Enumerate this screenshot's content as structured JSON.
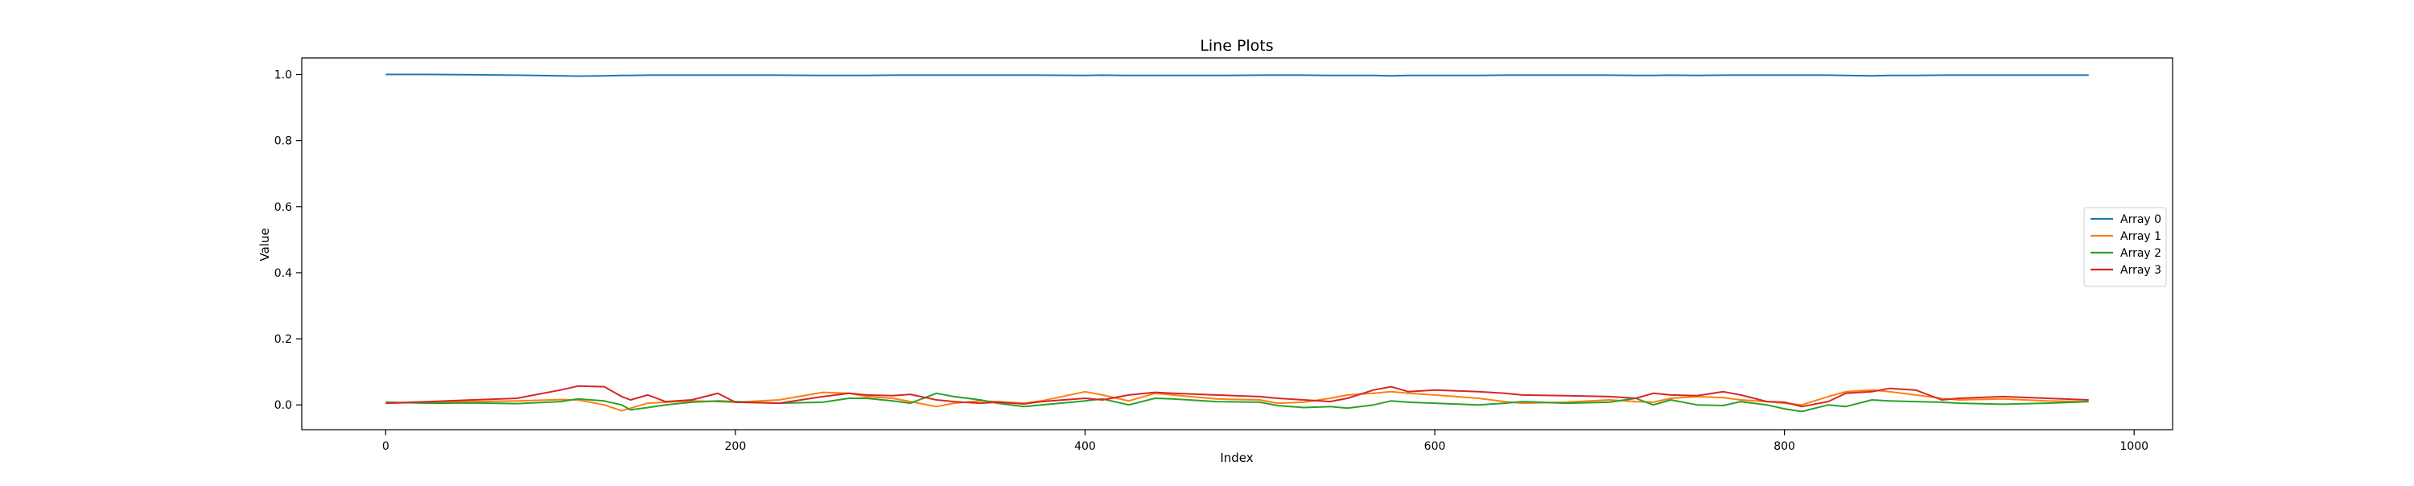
{
  "chart_data": {
    "type": "line",
    "title": "Line Plots",
    "xlabel": "Index",
    "ylabel": "Value",
    "xlim": [
      -48,
      1022
    ],
    "ylim": [
      -0.075,
      1.05
    ],
    "x_ticks": [
      0,
      200,
      400,
      600,
      800,
      1000
    ],
    "y_ticks": [
      0.0,
      0.2,
      0.4,
      0.6,
      0.8,
      1.0
    ],
    "x_tick_labels": [
      "0",
      "200",
      "400",
      "600",
      "800",
      "1000"
    ],
    "y_tick_labels": [
      "0.0",
      "0.2",
      "0.4",
      "0.6",
      "0.8",
      "1.0"
    ],
    "grid": false,
    "legend_position": "center-right",
    "x": [
      0,
      25,
      50,
      75,
      100,
      110,
      125,
      135,
      140,
      150,
      160,
      175,
      190,
      200,
      225,
      250,
      265,
      275,
      290,
      300,
      315,
      325,
      340,
      350,
      365,
      375,
      400,
      410,
      425,
      440,
      450,
      475,
      500,
      510,
      525,
      540,
      550,
      565,
      575,
      585,
      600,
      625,
      640,
      650,
      675,
      700,
      715,
      725,
      735,
      750,
      765,
      775,
      790,
      800,
      810,
      825,
      835,
      850,
      860,
      875,
      890,
      900,
      925,
      950,
      974
    ],
    "series": [
      {
        "name": "Array 0",
        "color": "#1f77b4",
        "values": [
          1.0,
          1.0,
          0.999,
          0.998,
          0.996,
          0.995,
          0.996,
          0.997,
          0.997,
          0.998,
          0.998,
          0.998,
          0.998,
          0.998,
          0.998,
          0.997,
          0.997,
          0.997,
          0.998,
          0.998,
          0.998,
          0.998,
          0.998,
          0.998,
          0.998,
          0.998,
          0.997,
          0.998,
          0.997,
          0.997,
          0.997,
          0.997,
          0.998,
          0.998,
          0.998,
          0.997,
          0.997,
          0.997,
          0.996,
          0.997,
          0.997,
          0.997,
          0.998,
          0.998,
          0.998,
          0.998,
          0.997,
          0.997,
          0.998,
          0.997,
          0.998,
          0.998,
          0.998,
          0.998,
          0.998,
          0.998,
          0.997,
          0.996,
          0.997,
          0.997,
          0.998,
          0.998,
          0.998,
          0.998,
          0.998
        ]
      },
      {
        "name": "Array 1",
        "color": "#ff7f0e",
        "values": [
          0.005,
          0.008,
          0.01,
          0.012,
          0.016,
          0.015,
          0.0,
          -0.018,
          -0.01,
          0.005,
          0.008,
          0.012,
          0.01,
          0.008,
          0.015,
          0.038,
          0.035,
          0.025,
          0.02,
          0.01,
          -0.005,
          0.005,
          0.012,
          0.01,
          0.005,
          0.012,
          0.04,
          0.03,
          0.012,
          0.035,
          0.03,
          0.018,
          0.015,
          0.005,
          0.008,
          0.02,
          0.03,
          0.035,
          0.04,
          0.035,
          0.03,
          0.02,
          0.01,
          0.005,
          0.008,
          0.015,
          0.01,
          0.008,
          0.02,
          0.025,
          0.022,
          0.015,
          0.01,
          0.005,
          0.0,
          0.025,
          0.04,
          0.045,
          0.04,
          0.03,
          0.02,
          0.015,
          0.018,
          0.012,
          0.01
        ]
      },
      {
        "name": "Array 2",
        "color": "#2ca02c",
        "values": [
          0.008,
          0.005,
          0.006,
          0.004,
          0.01,
          0.018,
          0.012,
          0.0,
          -0.015,
          -0.008,
          0.0,
          0.008,
          0.012,
          0.01,
          0.005,
          0.008,
          0.02,
          0.02,
          0.012,
          0.005,
          0.035,
          0.025,
          0.015,
          0.005,
          -0.005,
          0.0,
          0.012,
          0.018,
          0.0,
          0.02,
          0.018,
          0.01,
          0.008,
          -0.002,
          -0.008,
          -0.005,
          -0.01,
          0.0,
          0.012,
          0.008,
          0.005,
          0.0,
          0.005,
          0.01,
          0.005,
          0.008,
          0.02,
          0.0,
          0.015,
          0.0,
          -0.002,
          0.01,
          0.0,
          -0.012,
          -0.02,
          0.0,
          -0.005,
          0.015,
          0.012,
          0.01,
          0.008,
          0.005,
          0.002,
          0.005,
          0.01
        ]
      },
      {
        "name": "Array 3",
        "color": "#d62728",
        "values": [
          0.005,
          0.01,
          0.015,
          0.02,
          0.045,
          0.057,
          0.055,
          0.025,
          0.015,
          0.03,
          0.01,
          0.015,
          0.035,
          0.008,
          0.005,
          0.025,
          0.035,
          0.03,
          0.028,
          0.032,
          0.015,
          0.01,
          0.005,
          0.008,
          0.003,
          0.01,
          0.02,
          0.015,
          0.03,
          0.038,
          0.035,
          0.03,
          0.025,
          0.02,
          0.015,
          0.01,
          0.02,
          0.045,
          0.055,
          0.04,
          0.045,
          0.04,
          0.035,
          0.03,
          0.028,
          0.025,
          0.02,
          0.035,
          0.03,
          0.028,
          0.04,
          0.03,
          0.01,
          0.008,
          -0.005,
          0.01,
          0.035,
          0.04,
          0.05,
          0.045,
          0.015,
          0.02,
          0.025,
          0.02,
          0.015
        ]
      }
    ]
  }
}
